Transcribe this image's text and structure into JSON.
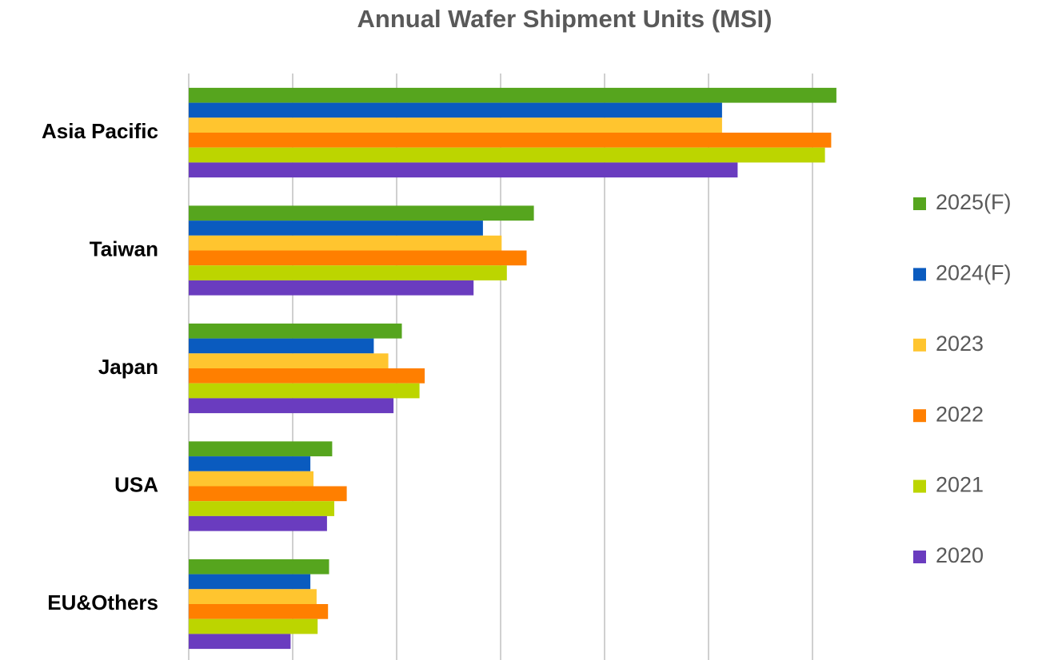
{
  "chart_data": {
    "type": "barh",
    "title": "Annual Wafer Shipment Units (MSI)",
    "categories": [
      "Asia Pacific",
      "Taiwan",
      "Japan",
      "USA",
      "EU&Others"
    ],
    "series": [
      {
        "name": "2025(F)",
        "color": "#56a51e",
        "values": [
          6.23,
          3.32,
          2.05,
          1.38,
          1.35
        ]
      },
      {
        "name": "2024(F)",
        "color": "#0a5bbf",
        "values": [
          5.13,
          2.83,
          1.78,
          1.17,
          1.17
        ]
      },
      {
        "name": "2023",
        "color": "#ffc52f",
        "values": [
          5.13,
          3.01,
          1.92,
          1.2,
          1.23
        ]
      },
      {
        "name": "2022",
        "color": "#ff7f00",
        "values": [
          6.18,
          3.25,
          2.27,
          1.52,
          1.34
        ]
      },
      {
        "name": "2021",
        "color": "#bcd500",
        "values": [
          6.12,
          3.06,
          2.22,
          1.4,
          1.24
        ]
      },
      {
        "name": "2020",
        "color": "#6a3cbf",
        "values": [
          5.28,
          2.74,
          1.97,
          1.33,
          0.98
        ]
      }
    ],
    "xlim": [
      0,
      6.3
    ],
    "xticks": [
      0,
      1,
      2,
      3,
      4,
      5,
      6
    ],
    "grid": true,
    "legend": "right"
  }
}
